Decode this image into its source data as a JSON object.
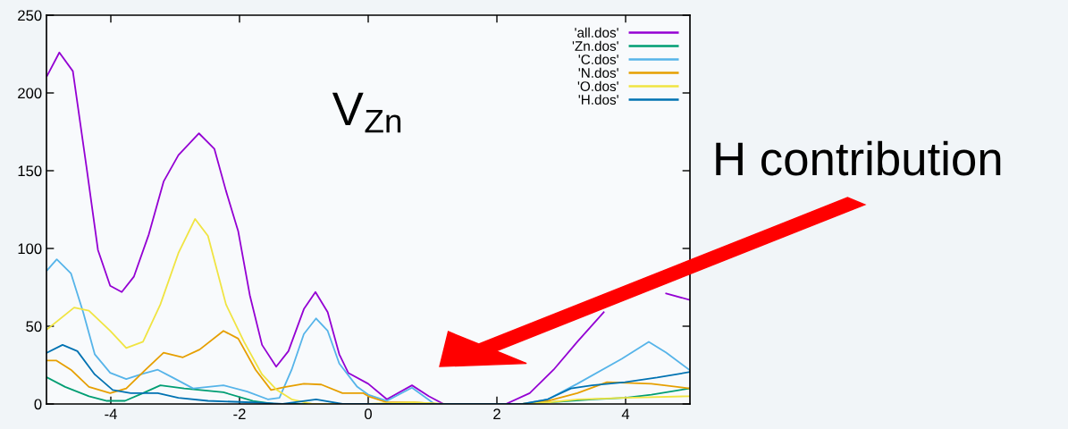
{
  "chart_data": {
    "type": "line",
    "xlim": [
      -5,
      5
    ],
    "ylim": [
      0,
      250
    ],
    "xticks": [
      -4,
      -2,
      0,
      2,
      4
    ],
    "yticks": [
      0,
      50,
      100,
      150,
      200,
      250
    ],
    "grid": false,
    "legend": "top right",
    "marker": "none",
    "line_style": "solid",
    "series": [
      {
        "name": "'all.dos'",
        "color": "#9400d3",
        "x": [
          -4.99,
          -4.8,
          -4.59,
          -4.38,
          -4.2,
          -4.01,
          -3.83,
          -3.64,
          -3.41,
          -3.18,
          -2.95,
          -2.63,
          -2.39,
          -2.21,
          -2.02,
          -1.84,
          -1.65,
          -1.43,
          -1.24,
          -1.0,
          -0.82,
          -0.63,
          -0.45,
          -0.31,
          0.0,
          0.29,
          0.68,
          0.94,
          1.17,
          2.14,
          2.51,
          2.88,
          3.25,
          3.66,
          3.99,
          4.17,
          4.35,
          4.52,
          4.63,
          4.99
        ],
        "values": [
          211,
          226,
          214,
          153,
          99,
          76,
          72,
          82,
          109,
          143,
          160,
          174,
          164,
          137,
          111,
          70,
          38,
          24,
          34,
          61,
          72,
          59,
          32,
          20,
          13,
          3,
          12,
          5,
          0,
          0,
          7,
          22,
          40,
          59,
          null,
          null,
          null,
          null,
          71,
          67
        ]
      },
      {
        "name": "'Zn.dos'",
        "color": "#009e73",
        "x": [
          -4.99,
          -4.71,
          -4.34,
          -4.06,
          -3.78,
          -3.5,
          -3.23,
          -2.86,
          -2.25,
          -1.79,
          -1.47,
          2.4,
          2.79,
          3.48,
          3.99,
          4.4,
          4.99
        ],
        "values": [
          17,
          11,
          5,
          2,
          2,
          7,
          12,
          10,
          7.5,
          2,
          0,
          0,
          1,
          3,
          4,
          6,
          10
        ]
      },
      {
        "name": "'C.dos'",
        "color": "#56b4e9",
        "x": [
          -4.99,
          -4.84,
          -4.62,
          -4.43,
          -4.25,
          -4.01,
          -3.76,
          -3.5,
          -3.27,
          -3.04,
          -2.72,
          -2.25,
          -1.88,
          -1.56,
          -1.38,
          -1.19,
          -1.0,
          -0.81,
          -0.63,
          -0.45,
          -0.17,
          0.0,
          0.29,
          0.68,
          1.03,
          2.4,
          2.79,
          3.25,
          3.94,
          4.36,
          4.63,
          4.99
        ],
        "values": [
          86,
          93,
          84,
          59,
          32,
          20,
          16,
          19.5,
          22,
          17,
          10,
          12,
          8,
          3,
          4,
          22,
          45,
          55,
          47,
          26,
          11,
          6,
          2,
          10.5,
          0,
          0,
          3,
          13,
          29,
          40,
          33,
          22
        ]
      },
      {
        "name": "'N.dos'",
        "color": "#e69f00",
        "x": [
          -4.99,
          -4.85,
          -4.62,
          -4.34,
          -4.01,
          -3.76,
          -3.46,
          -3.18,
          -2.88,
          -2.62,
          -2.25,
          -2.02,
          -1.75,
          -1.51,
          -1.28,
          -1.0,
          -0.73,
          -0.4,
          -0.08,
          0.0,
          0.29,
          0.71,
          1.08,
          2.4,
          2.79,
          3.25,
          3.71,
          4.4,
          4.99
        ],
        "values": [
          28,
          28,
          22,
          11,
          7,
          10,
          22,
          33,
          30,
          35,
          47,
          42,
          22,
          9,
          11,
          13,
          12.5,
          7,
          7,
          5,
          1,
          1,
          0,
          0,
          2,
          7,
          14,
          13,
          10
        ]
      },
      {
        "name": "'O.dos'",
        "color": "#f0e442",
        "x": [
          -4.99,
          -4.57,
          -4.34,
          -4.01,
          -3.76,
          -3.5,
          -3.23,
          -2.95,
          -2.69,
          -2.49,
          -2.21,
          -1.93,
          -1.65,
          -1.42,
          -1.19,
          -0.87,
          0.0,
          0.68,
          1.2,
          2.4,
          2.79,
          3.25,
          3.99,
          4.99
        ],
        "values": [
          48,
          62,
          60,
          47,
          36,
          40,
          64,
          97,
          119,
          108,
          64,
          40,
          19,
          9,
          3,
          0,
          0,
          1,
          0,
          0,
          1,
          3,
          4,
          5
        ]
      },
      {
        "name": "'H.dos'",
        "color": "#0072b2",
        "x": [
          -4.99,
          -4.75,
          -4.52,
          -4.25,
          -3.97,
          -3.69,
          -3.27,
          -2.95,
          -2.49,
          -1.79,
          -1.33,
          -0.81,
          -0.4,
          2.4,
          2.79,
          3.15,
          3.48,
          3.99,
          4.49,
          4.99
        ],
        "values": [
          33,
          38,
          34,
          19,
          9,
          7,
          7,
          4,
          2,
          1,
          0,
          3,
          0,
          0,
          3,
          10,
          12,
          14,
          17,
          20.5
        ]
      }
    ],
    "annotations": [
      "V$_{Zn}$",
      "H contribution"
    ]
  }
}
